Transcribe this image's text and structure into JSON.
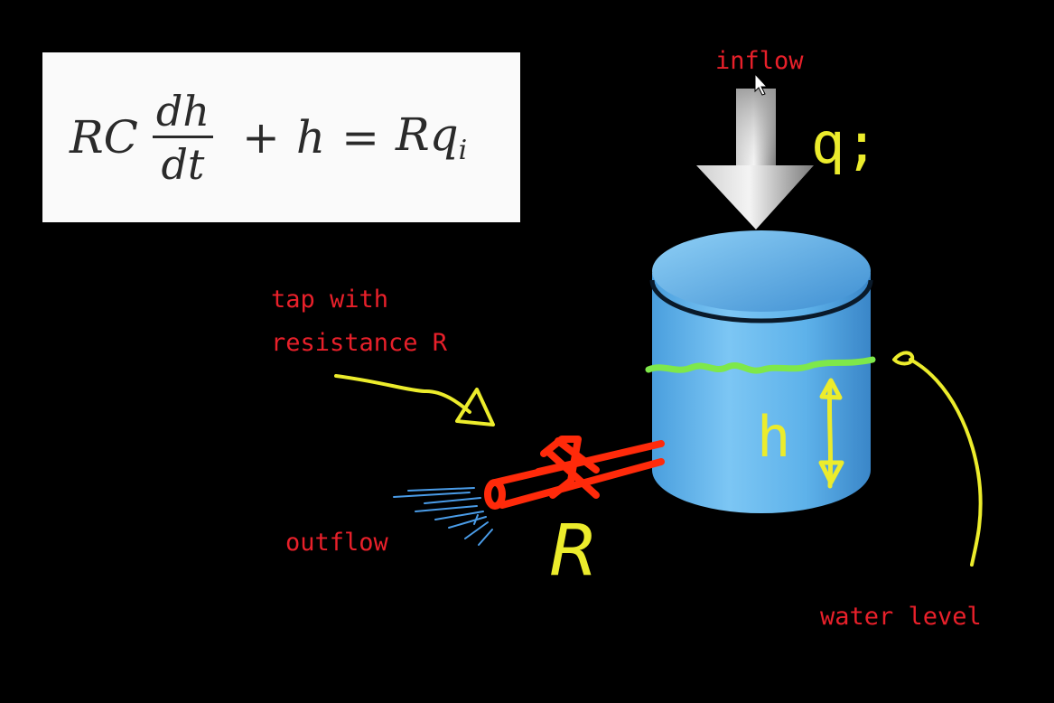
{
  "equation": {
    "lhs_coeff": "RC",
    "numerator": "dh",
    "denominator": "dt",
    "plus": "+",
    "h": "h",
    "equals": "=",
    "rhs": "Rq",
    "rhs_sub": "i"
  },
  "labels": {
    "inflow": "inflow",
    "tap_line1": "tap with",
    "tap_line2": "resistance R",
    "outflow": "outflow",
    "water_level": "water level"
  },
  "handwriting": {
    "qi": "q;",
    "h": "h",
    "R": "R"
  },
  "colors": {
    "background": "#000000",
    "label_red": "#e8202a",
    "ink_yellow": "#ecec2c",
    "water_green": "#7ee84a",
    "tap_red": "#ff2a0a",
    "tank_blue": "#5ab0e8",
    "spray_blue": "#4a9ce8"
  }
}
